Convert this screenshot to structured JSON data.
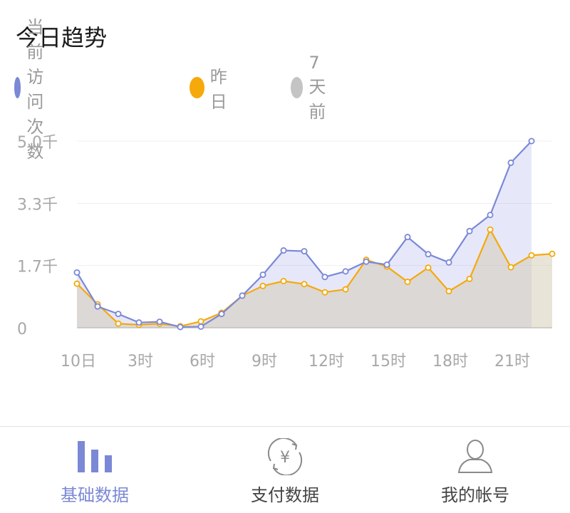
{
  "header": {
    "title": "今日趋势"
  },
  "legend": [
    {
      "label": "当前访问次数",
      "color": "#7b88d6"
    },
    {
      "label": "昨日",
      "color": "#f5a90a"
    },
    {
      "label": "7天前",
      "color": "#c4c4c4"
    }
  ],
  "chart_data": {
    "type": "line",
    "x": [
      0,
      1,
      2,
      3,
      4,
      5,
      6,
      7,
      8,
      9,
      10,
      11,
      12,
      13,
      14,
      15,
      16,
      17,
      18,
      19,
      20,
      21,
      22,
      23
    ],
    "x_tick_labels": [
      {
        "x": 0,
        "label": "10日"
      },
      {
        "x": 3,
        "label": "3时"
      },
      {
        "x": 6,
        "label": "6时"
      },
      {
        "x": 9,
        "label": "9时"
      },
      {
        "x": 12,
        "label": "12时"
      },
      {
        "x": 15,
        "label": "15时"
      },
      {
        "x": 18,
        "label": "18时"
      },
      {
        "x": 21,
        "label": "21时"
      }
    ],
    "y_tick_labels": [
      {
        "y": 0,
        "label": "0"
      },
      {
        "y": 1.67,
        "label": "1.7千"
      },
      {
        "y": 3.33,
        "label": "3.3千"
      },
      {
        "y": 5.0,
        "label": "5.0千"
      }
    ],
    "ylim": [
      0,
      5.0
    ],
    "series": [
      {
        "name": "当前访问次数",
        "color": "#7b88d6",
        "values": [
          1.48,
          0.57,
          0.37,
          0.14,
          0.16,
          0.02,
          0.03,
          0.37,
          0.86,
          1.42,
          2.07,
          2.05,
          1.36,
          1.51,
          1.77,
          1.69,
          2.43,
          1.97,
          1.75,
          2.59,
          3.02,
          4.42,
          5.0,
          null
        ]
      },
      {
        "name": "昨日",
        "color": "#f5a90a",
        "values": [
          1.18,
          0.63,
          0.11,
          0.08,
          0.11,
          0.04,
          0.17,
          0.4,
          0.86,
          1.12,
          1.25,
          1.17,
          0.95,
          1.03,
          1.82,
          1.64,
          1.23,
          1.61,
          0.98,
          1.31,
          2.63,
          1.62,
          1.94,
          1.98
        ]
      },
      {
        "name": "7天前",
        "color": "#c4c4c4",
        "values": [
          1.18,
          0.63,
          0.11,
          0.08,
          0.11,
          0.04,
          0.17,
          0.4,
          0.86,
          1.12,
          1.25,
          1.17,
          0.95,
          1.03,
          1.82,
          1.64,
          1.23,
          1.61,
          0.98,
          1.31,
          2.63,
          1.62,
          1.94,
          1.98
        ]
      }
    ],
    "grid": true,
    "legend_position": "top-left"
  },
  "tabbar": {
    "tabs": [
      {
        "label": "基础数据",
        "icon": "bar-chart-icon",
        "active": true
      },
      {
        "label": "支付数据",
        "icon": "yuan-refresh-icon",
        "active": false
      },
      {
        "label": "我的帐号",
        "icon": "user-icon",
        "active": false
      }
    ]
  }
}
